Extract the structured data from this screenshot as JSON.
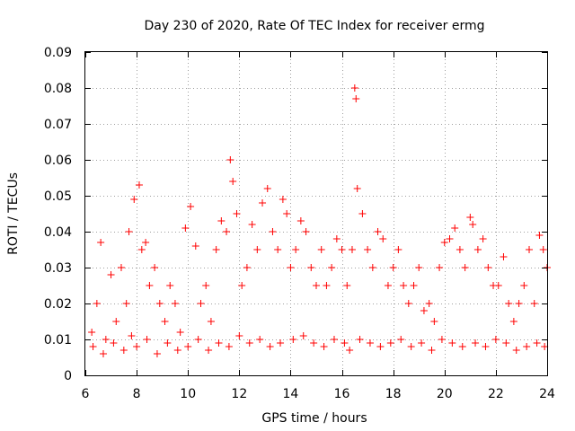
{
  "chart_data": {
    "type": "scatter",
    "title": "Day 230 of 2020, Rate Of TEC Index for receiver ermg",
    "xlabel": "GPS time / hours",
    "ylabel": "ROTI / TECUs",
    "xlim": [
      6,
      24
    ],
    "ylim": [
      0,
      0.09
    ],
    "xticks": [
      6,
      8,
      10,
      12,
      14,
      16,
      18,
      20,
      22,
      24
    ],
    "yticks": [
      0,
      0.01,
      0.02,
      0.03,
      0.04,
      0.05,
      0.06,
      0.07,
      0.08,
      0.09
    ],
    "xtick_labels": [
      "6",
      "8",
      "10",
      "12",
      "14",
      "16",
      "18",
      "20",
      "22",
      "24"
    ],
    "ytick_labels": [
      "0",
      "0.01",
      "0.02",
      "0.03",
      "0.04",
      "0.05",
      "0.06",
      "0.07",
      "0.08",
      "0.09"
    ],
    "grid": true,
    "marker": "+",
    "series": [
      {
        "name": "ROTI",
        "color": "#ff0000",
        "x": [
          6.25,
          6.45,
          6.6,
          6.8,
          7.0,
          7.2,
          7.4,
          7.6,
          7.7,
          7.9,
          8.1,
          8.2,
          8.35,
          8.5,
          8.7,
          8.9,
          9.1,
          9.3,
          9.5,
          9.7,
          9.9,
          10.1,
          10.3,
          10.5,
          10.7,
          10.9,
          11.1,
          11.3,
          11.5,
          11.65,
          11.75,
          11.9,
          12.1,
          12.3,
          12.5,
          12.7,
          12.9,
          13.1,
          13.3,
          13.5,
          13.7,
          13.85,
          14.0,
          14.2,
          14.4,
          14.6,
          14.8,
          15.0,
          15.2,
          15.4,
          15.6,
          15.8,
          16.0,
          16.2,
          16.4,
          16.5,
          16.55,
          16.6,
          16.8,
          17.0,
          17.2,
          17.4,
          17.6,
          17.8,
          18.0,
          18.2,
          18.4,
          18.6,
          18.8,
          19.0,
          19.2,
          19.4,
          19.6,
          19.8,
          20.0,
          20.2,
          20.4,
          20.6,
          20.8,
          21.0,
          21.1,
          21.3,
          21.5,
          21.7,
          21.9,
          22.1,
          22.3,
          22.5,
          22.7,
          22.9,
          23.1,
          23.3,
          23.5,
          23.7,
          23.85,
          24.0,
          6.3,
          6.7,
          7.1,
          7.5,
          7.8,
          8.0,
          8.4,
          8.8,
          9.2,
          9.6,
          10.0,
          10.4,
          10.8,
          11.2,
          11.6,
          12.0,
          12.4,
          12.8,
          13.2,
          13.6,
          14.1,
          14.5,
          14.9,
          15.3,
          15.7,
          16.1,
          16.3,
          16.7,
          17.1,
          17.5,
          17.9,
          18.3,
          18.7,
          19.1,
          19.5,
          19.9,
          20.3,
          20.7,
          21.2,
          21.6,
          22.0,
          22.4,
          22.8,
          23.2,
          23.6,
          23.9
        ],
        "y": [
          0.012,
          0.02,
          0.037,
          0.01,
          0.028,
          0.015,
          0.03,
          0.02,
          0.04,
          0.049,
          0.053,
          0.035,
          0.037,
          0.025,
          0.03,
          0.02,
          0.015,
          0.025,
          0.02,
          0.012,
          0.041,
          0.047,
          0.036,
          0.02,
          0.025,
          0.015,
          0.035,
          0.043,
          0.04,
          0.06,
          0.054,
          0.045,
          0.025,
          0.03,
          0.042,
          0.035,
          0.048,
          0.052,
          0.04,
          0.035,
          0.049,
          0.045,
          0.03,
          0.035,
          0.043,
          0.04,
          0.03,
          0.025,
          0.035,
          0.025,
          0.03,
          0.038,
          0.035,
          0.025,
          0.035,
          0.08,
          0.077,
          0.052,
          0.045,
          0.035,
          0.03,
          0.04,
          0.038,
          0.025,
          0.03,
          0.035,
          0.025,
          0.02,
          0.025,
          0.03,
          0.018,
          0.02,
          0.015,
          0.03,
          0.037,
          0.038,
          0.041,
          0.035,
          0.03,
          0.044,
          0.042,
          0.035,
          0.038,
          0.03,
          0.025,
          0.025,
          0.033,
          0.02,
          0.015,
          0.02,
          0.025,
          0.035,
          0.02,
          0.039,
          0.035,
          0.03,
          0.008,
          0.006,
          0.009,
          0.007,
          0.011,
          0.008,
          0.01,
          0.006,
          0.009,
          0.007,
          0.008,
          0.01,
          0.007,
          0.009,
          0.008,
          0.011,
          0.009,
          0.01,
          0.008,
          0.009,
          0.01,
          0.011,
          0.009,
          0.008,
          0.01,
          0.009,
          0.007,
          0.01,
          0.009,
          0.008,
          0.009,
          0.01,
          0.008,
          0.009,
          0.007,
          0.01,
          0.009,
          0.008,
          0.009,
          0.008,
          0.01,
          0.009,
          0.007,
          0.008,
          0.009,
          0.008
        ]
      }
    ]
  }
}
